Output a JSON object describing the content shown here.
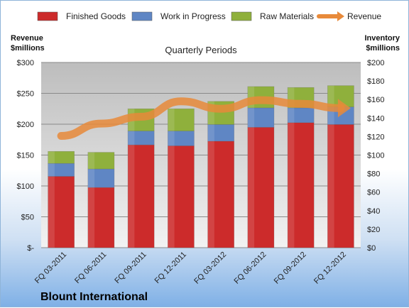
{
  "chart_data": {
    "type": "bar",
    "subtitle": "Quarterly Periods",
    "company": "Blount International",
    "left_axis_title": [
      "Revenue",
      "$millions"
    ],
    "right_axis_title": [
      "Inventory",
      "$millions"
    ],
    "categories": [
      "FQ 03-2011",
      "FQ 06-2011",
      "FQ 09-2011",
      "FQ 12-2011",
      "FQ 03-2012",
      "FQ 06-2012",
      "FQ 09-2012",
      "FQ 12-2012"
    ],
    "series": [
      {
        "name": "Finished Goods",
        "axis": "right",
        "stacked": true,
        "color": "#cc2b2b",
        "values": [
          77,
          65,
          111,
          110,
          115,
          130,
          135,
          133
        ]
      },
      {
        "name": "Work in Progress",
        "axis": "right",
        "stacked": true,
        "color": "#5f86c4",
        "values": [
          14,
          20,
          15,
          16,
          18,
          21,
          16,
          19
        ]
      },
      {
        "name": "Raw Materials",
        "axis": "right",
        "stacked": true,
        "color": "#8fb03c",
        "values": [
          13,
          18,
          24,
          24,
          25,
          23,
          22,
          23
        ]
      },
      {
        "name": "Revenue",
        "axis": "left",
        "type": "line",
        "color": "#e88a3a",
        "values": [
          181,
          201,
          212,
          237,
          225,
          239,
          233,
          226
        ]
      }
    ],
    "left_axis": {
      "ylim": [
        0,
        300
      ],
      "ticks": [
        "$-",
        "$50",
        "$100",
        "$150",
        "$200",
        "$250",
        "$300"
      ]
    },
    "right_axis": {
      "ylim": [
        0,
        200
      ],
      "ticks": [
        "$0",
        "$20",
        "$40",
        "$60",
        "$80",
        "$100",
        "$120",
        "$140",
        "$160",
        "$180",
        "$200"
      ]
    },
    "grid": true,
    "legend_position": "top"
  }
}
